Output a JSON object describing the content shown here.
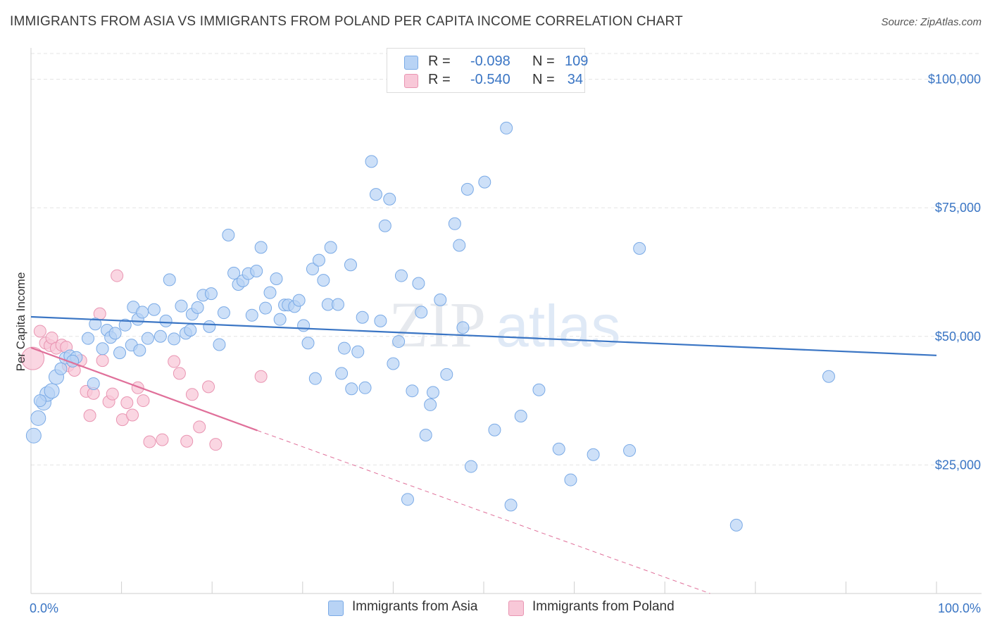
{
  "header": {
    "title": "IMMIGRANTS FROM ASIA VS IMMIGRANTS FROM POLAND PER CAPITA INCOME CORRELATION CHART",
    "source": "Source: ZipAtlas.com"
  },
  "watermark": {
    "zip": "ZIP",
    "atlas": "atlas"
  },
  "legend": {
    "rows": [
      {
        "r_label": "R =",
        "r_value": "-0.098",
        "n_label": "N =",
        "n_value": "109",
        "color": "#b8d3f5",
        "border": "#7aaae6"
      },
      {
        "r_label": "R =",
        "r_value": "-0.540",
        "n_label": "N =",
        "n_value": "34",
        "color": "#f8c8d8",
        "border": "#e995b2"
      }
    ]
  },
  "bottom_legend": {
    "asia": "Immigrants from Asia",
    "poland": "Immigrants from Poland"
  },
  "chart_data": {
    "type": "scatter",
    "ylabel": "Per Capita Income",
    "xlabel": "",
    "xlim": [
      0,
      100
    ],
    "ylim": [
      0,
      105000
    ],
    "x_tick_labels": [
      "0.0%",
      "100.0%"
    ],
    "y_ticks": [
      {
        "value": 25000,
        "label": "$25,000"
      },
      {
        "value": 50000,
        "label": "$50,000"
      },
      {
        "value": 75000,
        "label": "$75,000"
      },
      {
        "value": 100000,
        "label": "$100,000"
      }
    ],
    "grid": true,
    "colors": {
      "asia": "#3a75c4",
      "poland": "#e0709a",
      "asia_fill": "#b8d3f5",
      "poland_fill": "#f8c8d8"
    },
    "series": [
      {
        "name": "Immigrants from Asia",
        "trend": {
          "x": [
            0,
            100
          ],
          "y": [
            53800,
            46300
          ]
        },
        "points": [
          [
            0.3,
            30700
          ],
          [
            0.8,
            34100
          ],
          [
            1.4,
            37100
          ],
          [
            1.8,
            38800
          ],
          [
            2.3,
            39400
          ],
          [
            2.8,
            42100
          ],
          [
            3.3,
            43700
          ],
          [
            3.8,
            45800
          ],
          [
            4.3,
            46200
          ],
          [
            5.0,
            45900
          ],
          [
            6.3,
            49600
          ],
          [
            7.1,
            52400
          ],
          [
            7.9,
            47600
          ],
          [
            8.4,
            51200
          ],
          [
            8.8,
            49800
          ],
          [
            9.3,
            50600
          ],
          [
            9.8,
            46800
          ],
          [
            10.4,
            52200
          ],
          [
            11.1,
            48300
          ],
          [
            11.3,
            55700
          ],
          [
            11.8,
            53300
          ],
          [
            12.3,
            54700
          ],
          [
            12.9,
            49600
          ],
          [
            13.6,
            55200
          ],
          [
            14.3,
            50000
          ],
          [
            14.9,
            53000
          ],
          [
            15.3,
            61000
          ],
          [
            15.8,
            49500
          ],
          [
            16.6,
            55900
          ],
          [
            17.1,
            50600
          ],
          [
            17.6,
            51200
          ],
          [
            17.8,
            54300
          ],
          [
            18.4,
            55600
          ],
          [
            19.0,
            58000
          ],
          [
            19.7,
            51900
          ],
          [
            19.9,
            58300
          ],
          [
            20.8,
            48400
          ],
          [
            21.3,
            54600
          ],
          [
            21.8,
            69700
          ],
          [
            22.4,
            62300
          ],
          [
            22.9,
            60100
          ],
          [
            23.4,
            60800
          ],
          [
            24.0,
            62200
          ],
          [
            24.4,
            54100
          ],
          [
            24.9,
            62700
          ],
          [
            25.4,
            67300
          ],
          [
            25.9,
            55500
          ],
          [
            26.4,
            58500
          ],
          [
            27.1,
            61200
          ],
          [
            27.5,
            53300
          ],
          [
            28.0,
            56100
          ],
          [
            28.4,
            56100
          ],
          [
            29.1,
            55800
          ],
          [
            29.6,
            57000
          ],
          [
            30.1,
            52100
          ],
          [
            30.6,
            48700
          ],
          [
            31.1,
            63100
          ],
          [
            31.4,
            41800
          ],
          [
            31.8,
            64800
          ],
          [
            32.3,
            60900
          ],
          [
            32.8,
            56200
          ],
          [
            33.1,
            67300
          ],
          [
            33.9,
            56200
          ],
          [
            34.3,
            42800
          ],
          [
            34.6,
            47700
          ],
          [
            35.3,
            63900
          ],
          [
            36.1,
            47000
          ],
          [
            36.6,
            53700
          ],
          [
            36.9,
            40000
          ],
          [
            37.6,
            84000
          ],
          [
            38.1,
            77600
          ],
          [
            38.6,
            53000
          ],
          [
            39.1,
            71500
          ],
          [
            39.6,
            76700
          ],
          [
            40.0,
            44700
          ],
          [
            40.6,
            49000
          ],
          [
            40.9,
            61800
          ],
          [
            41.6,
            18300
          ],
          [
            42.1,
            39400
          ],
          [
            42.8,
            60300
          ],
          [
            43.1,
            54700
          ],
          [
            43.6,
            30800
          ],
          [
            44.1,
            36700
          ],
          [
            44.4,
            39100
          ],
          [
            45.2,
            57100
          ],
          [
            45.9,
            42600
          ],
          [
            46.8,
            71900
          ],
          [
            47.3,
            67700
          ],
          [
            47.7,
            51700
          ],
          [
            48.2,
            78600
          ],
          [
            48.6,
            24700
          ],
          [
            50.1,
            80000
          ],
          [
            51.2,
            31800
          ],
          [
            52.5,
            90500
          ],
          [
            53.0,
            17200
          ],
          [
            54.1,
            34500
          ],
          [
            56.1,
            39600
          ],
          [
            58.3,
            28100
          ],
          [
            59.6,
            22100
          ],
          [
            62.1,
            27000
          ],
          [
            66.1,
            27800
          ],
          [
            67.2,
            67100
          ],
          [
            77.9,
            13300
          ],
          [
            88.1,
            42200
          ],
          [
            1.0,
            37500
          ],
          [
            4.6,
            45200
          ],
          [
            6.9,
            40800
          ],
          [
            12.0,
            47300
          ],
          [
            35.4,
            39800
          ]
        ]
      },
      {
        "name": "Immigrants from Poland",
        "trend": {
          "x": [
            0,
            25
          ],
          "y": [
            47800,
            31700
          ]
        },
        "trend_ext": {
          "x": [
            25,
            75
          ],
          "y": [
            31700,
            0
          ]
        },
        "points": [
          [
            0.2,
            45700
          ],
          [
            1.0,
            51000
          ],
          [
            1.6,
            48700
          ],
          [
            2.1,
            48200
          ],
          [
            2.3,
            49700
          ],
          [
            2.8,
            47700
          ],
          [
            3.4,
            48300
          ],
          [
            3.9,
            47900
          ],
          [
            4.1,
            44300
          ],
          [
            4.8,
            43400
          ],
          [
            5.5,
            45300
          ],
          [
            6.1,
            39300
          ],
          [
            6.5,
            34600
          ],
          [
            6.9,
            38900
          ],
          [
            7.6,
            54400
          ],
          [
            7.9,
            45300
          ],
          [
            8.6,
            37300
          ],
          [
            9.0,
            38800
          ],
          [
            9.5,
            61800
          ],
          [
            10.1,
            33800
          ],
          [
            10.6,
            37100
          ],
          [
            11.2,
            34700
          ],
          [
            11.8,
            40000
          ],
          [
            12.4,
            37500
          ],
          [
            13.1,
            29500
          ],
          [
            14.5,
            29900
          ],
          [
            15.8,
            45100
          ],
          [
            16.4,
            42800
          ],
          [
            17.2,
            29600
          ],
          [
            17.8,
            38700
          ],
          [
            18.6,
            32400
          ],
          [
            19.6,
            40200
          ],
          [
            20.4,
            29000
          ],
          [
            25.4,
            42200
          ]
        ]
      }
    ]
  }
}
